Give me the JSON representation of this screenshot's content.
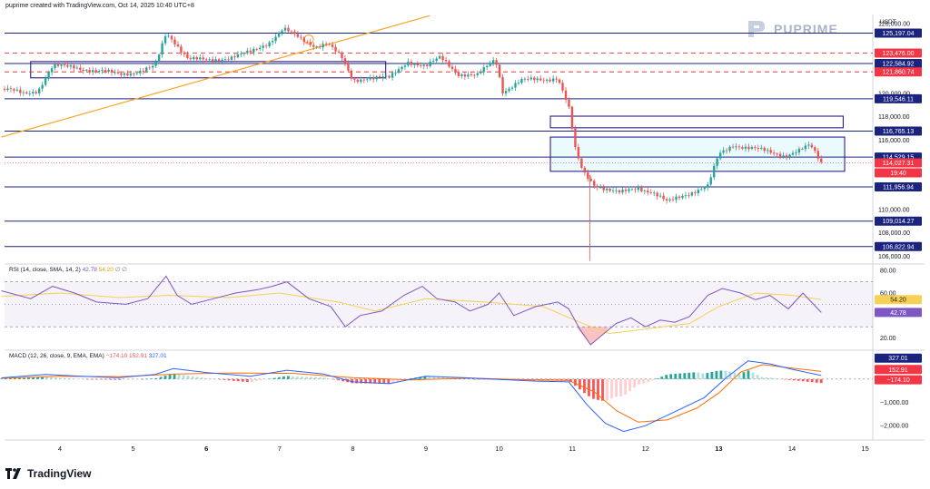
{
  "header": {
    "created_text": "puprime created with TradingView.com, Oct 14, 2025 10:40 UTC+8"
  },
  "brand": {
    "name": "PUPRIME"
  },
  "footer": {
    "logo_text": "TradingView"
  },
  "colors": {
    "up": "#26a69a",
    "down": "#ef5350",
    "level_line": "#1a237e",
    "trend_line": "#f5a623",
    "red_dash": "#e53935",
    "price_tag": "#f23645",
    "rsi_line": "#7e57c2",
    "rsi_sma": "#f7d154",
    "macd_line": "#2962ff",
    "signal_line": "#ff6d00"
  },
  "chart_data": [
    {
      "type": "candlestick",
      "panel": "price",
      "currency_label": "USDT",
      "x_axis_ticks": [
        "4",
        "5",
        "6",
        "7",
        "8",
        "9",
        "10",
        "11",
        "12",
        "13",
        "14",
        "15"
      ],
      "x_axis_bold": [
        "6",
        "13"
      ],
      "y_axis_ticks": [
        "126,000.00",
        "120,000.00",
        "118,000.00",
        "116,000.00",
        "110,000.00",
        "108,000.00",
        "106,000.00"
      ],
      "ylim": [
        105400,
        126800
      ],
      "solid_levels": [
        {
          "value": 125197.04,
          "label": "125,197.04"
        },
        {
          "value": 122584.92,
          "label": "122,584.92"
        },
        {
          "value": 119546.11,
          "label": "119,546.11"
        },
        {
          "value": 116765.13,
          "label": "116,765.13"
        },
        {
          "value": 114529.15,
          "label": "114,529.15"
        },
        {
          "value": 111956.94,
          "label": "111,956.94"
        },
        {
          "value": 109014.27,
          "label": "109,014.27"
        },
        {
          "value": 106822.94,
          "label": "106,822.94"
        }
      ],
      "dashed_levels": [
        {
          "value": 123476.0,
          "label": "123,476.00"
        },
        {
          "value": 121860.74,
          "label": "121,860.74"
        }
      ],
      "current_price": {
        "value": 114027.31,
        "label": "114,027.31",
        "countdown": "19:40"
      },
      "zones": [
        {
          "from_day": 3.6,
          "to_day": 8.45,
          "low": 121350,
          "high": 122750
        },
        {
          "from_day": 10.7,
          "to_day": 14.7,
          "low": 117050,
          "high": 118050
        },
        {
          "from_day": 10.7,
          "to_day": 14.72,
          "low": 113300,
          "high": 116250
        }
      ],
      "trend_line": {
        "from": [
          3.2,
          116250
        ],
        "to": [
          9.05,
          126700
        ]
      },
      "ohlc_path_days": [
        3.2,
        3.5,
        3.7,
        3.9,
        4.2,
        4.5,
        4.8,
        5.1,
        5.3,
        5.45,
        5.55,
        5.75,
        6.0,
        6.3,
        6.6,
        6.85,
        7.05,
        7.3,
        7.5,
        7.65,
        7.85,
        8.0,
        8.2,
        8.5,
        8.75,
        9.0,
        9.2,
        9.45,
        9.7,
        9.95,
        10.05,
        10.3,
        10.6,
        10.8,
        10.95,
        11.05,
        11.15,
        11.3,
        11.5,
        11.65,
        11.9,
        12.1,
        12.3,
        12.5,
        12.7,
        12.85,
        13.0,
        13.2,
        13.45,
        13.7,
        13.9,
        14.1,
        14.25,
        14.4
      ],
      "ohlc_path_values": [
        120400,
        120000,
        120300,
        122300,
        122300,
        121900,
        121700,
        121900,
        122300,
        125200,
        124600,
        123000,
        122800,
        123100,
        123500,
        124400,
        125600,
        124600,
        124100,
        124400,
        123000,
        121100,
        121400,
        121300,
        122800,
        122300,
        123100,
        121700,
        121500,
        123000,
        120200,
        121100,
        121200,
        121400,
        118800,
        114800,
        113200,
        112200,
        111700,
        111400,
        111900,
        111500,
        110600,
        111200,
        111700,
        112000,
        114700,
        115600,
        115300,
        114900,
        114700,
        115100,
        115500,
        114030
      ]
    },
    {
      "type": "line",
      "panel": "rsi",
      "legend": {
        "name": "RSI (14, close, SMA, 14, 2)",
        "rsi": "42.78",
        "sma": "54.20",
        "extra": "∅ ∅"
      },
      "y_axis_ticks": [
        "80.00",
        "60.00",
        "20.00"
      ],
      "ylim": [
        10,
        85
      ],
      "band": [
        70,
        30
      ],
      "current_labels": {
        "sma": "54.20",
        "rsi": "42.78"
      },
      "rsi_days": [
        3.2,
        3.6,
        3.9,
        4.2,
        4.5,
        4.9,
        5.2,
        5.45,
        5.6,
        5.8,
        6.1,
        6.4,
        6.7,
        6.9,
        7.1,
        7.4,
        7.7,
        7.9,
        8.1,
        8.4,
        8.7,
        8.95,
        9.15,
        9.4,
        9.6,
        9.85,
        10.0,
        10.2,
        10.5,
        10.8,
        10.95,
        11.1,
        11.25,
        11.45,
        11.6,
        11.8,
        12.0,
        12.2,
        12.4,
        12.6,
        12.85,
        13.05,
        13.3,
        13.5,
        13.7,
        13.95,
        14.15,
        14.4
      ],
      "rsi_values": [
        62,
        55,
        66,
        60,
        52,
        50,
        55,
        75,
        58,
        50,
        55,
        60,
        63,
        66,
        70,
        55,
        48,
        30,
        40,
        44,
        58,
        66,
        55,
        52,
        44,
        50,
        60,
        40,
        48,
        52,
        46,
        28,
        14,
        25,
        33,
        38,
        30,
        36,
        34,
        39,
        58,
        64,
        60,
        54,
        58,
        46,
        60,
        42.78
      ],
      "sma_days": [
        3.2,
        4.0,
        4.8,
        5.5,
        6.3,
        7.0,
        7.8,
        8.3,
        9.0,
        9.8,
        10.6,
        11.1,
        11.5,
        12.0,
        12.6,
        13.0,
        13.5,
        14.0,
        14.4
      ],
      "sma_values": [
        57,
        60,
        56,
        58,
        56,
        60,
        52,
        44,
        55,
        52,
        48,
        34,
        24,
        28,
        33,
        48,
        60,
        58,
        54.2
      ]
    },
    {
      "type": "histogram+line",
      "panel": "macd",
      "legend": {
        "name": "MACD (12, 26, close, 9, EMA, EMA)",
        "histogram": "−174.10",
        "macd": "152.91",
        "signal": "327.01"
      },
      "y_axis_ticks": [
        "0.00",
        "−1,000.00",
        "−2,000.00"
      ],
      "ylim": [
        -2500,
        1200
      ],
      "current_labels": {
        "signal": "327.01",
        "macd": "152.91",
        "histogram": "−174.10"
      },
      "macd_days": [
        3.2,
        3.8,
        4.3,
        4.8,
        5.3,
        5.55,
        6.0,
        6.6,
        7.1,
        7.6,
        8.0,
        8.5,
        9.0,
        9.5,
        10.0,
        10.5,
        10.95,
        11.2,
        11.45,
        11.7,
        12.0,
        12.4,
        12.8,
        13.1,
        13.4,
        13.7,
        14.0,
        14.4
      ],
      "macd_values": [
        50,
        200,
        120,
        60,
        200,
        450,
        280,
        120,
        380,
        220,
        -120,
        -200,
        120,
        60,
        -20,
        -90,
        -120,
        -1100,
        -1900,
        -2250,
        -2000,
        -1400,
        -800,
        50,
        780,
        650,
        420,
        152.91
      ],
      "signal_days": [
        3.2,
        4.0,
        4.8,
        5.6,
        6.4,
        7.2,
        8.0,
        8.8,
        9.6,
        10.4,
        10.95,
        11.3,
        11.6,
        11.9,
        12.3,
        12.7,
        13.0,
        13.3,
        13.6,
        14.0,
        14.4
      ],
      "signal_values": [
        30,
        120,
        100,
        220,
        260,
        240,
        60,
        -40,
        40,
        -30,
        -60,
        -550,
        -1350,
        -1850,
        -1750,
        -1250,
        -600,
        300,
        620,
        470,
        327.01
      ]
    }
  ]
}
